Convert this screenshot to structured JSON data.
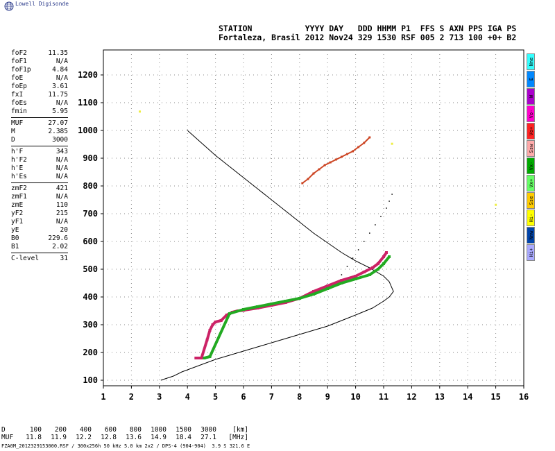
{
  "app": {
    "brand": "Lowell Digisonde"
  },
  "header": {
    "labels": "STATION           YYYY DAY   DDD HHMM P1  FFS S AXN PPS IGA PS",
    "values": "Fortaleza, Brasil 2012 Nov24 329 1530 RSF 005 2 713 100 +0+ B2"
  },
  "params": [
    {
      "name": "foF2",
      "value": "11.35"
    },
    {
      "name": "foF1",
      "value": "N/A"
    },
    {
      "name": "foF1p",
      "value": "4.84"
    },
    {
      "name": "foE",
      "value": "N/A"
    },
    {
      "name": "foEp",
      "value": "3.61"
    },
    {
      "name": "fxI",
      "value": "11.75"
    },
    {
      "name": "foEs",
      "value": "N/A"
    },
    {
      "name": "fmin",
      "value": "5.95"
    },
    {
      "name": "MUF",
      "value": "27.07"
    },
    {
      "name": "M",
      "value": "2.385"
    },
    {
      "name": "D",
      "value": "3000"
    },
    {
      "name": "h'F",
      "value": "343"
    },
    {
      "name": "h'F2",
      "value": "N/A"
    },
    {
      "name": "h'E",
      "value": "N/A"
    },
    {
      "name": "h'Es",
      "value": "N/A"
    },
    {
      "name": "zmF2",
      "value": "421"
    },
    {
      "name": "zmF1",
      "value": "N/A"
    },
    {
      "name": "zmE",
      "value": "110"
    },
    {
      "name": "yF2",
      "value": "215"
    },
    {
      "name": "yF1",
      "value": "N/A"
    },
    {
      "name": "yE",
      "value": "20"
    },
    {
      "name": "B0",
      "value": "229.6"
    },
    {
      "name": "B1",
      "value": "2.02"
    },
    {
      "name": "C-level",
      "value": "31"
    }
  ],
  "legend": [
    {
      "label": "Nne",
      "color": "#33ffff"
    },
    {
      "label": "E",
      "color": "#0088ff"
    },
    {
      "label": "W",
      "color": "#aa00cc"
    },
    {
      "label": "Vo-",
      "color": "#ff00cc"
    },
    {
      "label": "Vo+",
      "color": "#ff2222"
    },
    {
      "label": "Ssw",
      "color": "#ffaaaa"
    },
    {
      "label": "Vx-",
      "color": "#00aa00"
    },
    {
      "label": "Vx+",
      "color": "#66ff66"
    },
    {
      "label": "Sse",
      "color": "#ffcc00"
    },
    {
      "label": "Hi-",
      "color": "#ffff00"
    },
    {
      "label": "Nnw",
      "color": "#0044aa"
    },
    {
      "label": "Hi+",
      "color": "#aaaaff"
    }
  ],
  "muf_table": {
    "d_label": "D",
    "d_values": [
      "100",
      "200",
      "400",
      "600",
      "800",
      "1000",
      "1500",
      "3000"
    ],
    "d_unit": "[km]",
    "muf_label": "MUF",
    "muf_values": [
      "11.8",
      "11.9",
      "12.2",
      "12.8",
      "13.6",
      "14.9",
      "18.4",
      "27.1"
    ],
    "muf_unit": "[MHz]"
  },
  "footer": "FZA0M_2012329153000.RSF / 300x256h 50 kHz 5.0 km 2x2 / DPS-4 (904-904)  3.9 S 321.6 E",
  "chart_data": {
    "type": "scatter",
    "xlabel": "",
    "ylabel": "",
    "xlim": [
      1,
      16
    ],
    "ylim": [
      80,
      1290
    ],
    "x_ticks": [
      1,
      2,
      3,
      4,
      5,
      6,
      7,
      8,
      9,
      10,
      11,
      12,
      13,
      14,
      15,
      16
    ],
    "y_ticks": [
      100,
      200,
      300,
      400,
      500,
      600,
      700,
      800,
      900,
      1000,
      1100,
      1200
    ],
    "grid": "dotted",
    "series": [
      {
        "name": "",
        "role": "true-height-profile",
        "color": "#000000",
        "x": [
          4.0,
          4.5,
          5.0,
          5.5,
          6.0,
          6.5,
          7.0,
          7.5,
          8.0,
          8.5,
          9.0,
          9.5,
          10.0,
          10.5,
          11.0,
          11.2,
          11.35,
          11.2,
          11.0,
          10.6,
          10.0,
          9.5,
          9.0,
          8.5,
          8.0,
          7.5,
          7.0,
          6.5,
          6.0,
          5.5,
          5.0,
          4.6,
          4.2,
          3.8,
          3.5,
          3.2,
          3.05
        ],
        "y": [
          1000,
          955,
          910,
          870,
          830,
          790,
          750,
          710,
          670,
          630,
          595,
          560,
          530,
          505,
          475,
          455,
          420,
          400,
          385,
          360,
          335,
          315,
          295,
          280,
          265,
          250,
          235,
          220,
          205,
          190,
          175,
          160,
          145,
          130,
          115,
          105,
          100
        ]
      },
      {
        "name": "",
        "role": "extraordinary-trace",
        "color": "#000000",
        "x": [
          9.5,
          9.7,
          9.9,
          10.1,
          10.3,
          10.5,
          10.7,
          10.9,
          11.1,
          11.2,
          11.3
        ],
        "y": [
          480,
          510,
          540,
          570,
          600,
          630,
          660,
          690,
          720,
          745,
          770
        ]
      },
      {
        "name": "",
        "role": "ordinary-trace",
        "color": "#cc2266",
        "x": [
          4.3,
          4.5,
          4.7,
          4.8,
          4.9,
          5.0,
          5.2,
          5.4,
          5.6,
          5.8,
          6.0,
          6.5,
          7.0,
          7.5,
          8.0,
          8.5,
          9.0,
          9.5,
          10.0,
          10.3,
          10.6,
          10.8,
          11.0,
          11.1
        ],
        "y": [
          180,
          180,
          245,
          280,
          300,
          310,
          315,
          335,
          345,
          350,
          352,
          360,
          370,
          380,
          395,
          420,
          440,
          460,
          475,
          490,
          505,
          520,
          545,
          560
        ]
      },
      {
        "name": "",
        "role": "x-trace",
        "color": "#22aa22",
        "x": [
          4.6,
          4.8,
          5.5,
          6.0,
          6.5,
          7.0,
          7.5,
          8.0,
          8.5,
          9.0,
          9.5,
          10.0,
          10.5,
          10.8,
          11.0,
          11.2
        ],
        "y": [
          180,
          185,
          340,
          355,
          365,
          375,
          385,
          395,
          410,
          430,
          450,
          465,
          480,
          500,
          520,
          545
        ]
      },
      {
        "name": "",
        "role": "multiple-echo",
        "color": "#cc4422",
        "x": [
          8.1,
          8.3,
          8.5,
          8.7,
          8.9,
          9.1,
          9.3,
          9.5,
          9.7,
          9.9,
          10.1,
          10.3,
          10.5
        ],
        "y": [
          810,
          825,
          845,
          860,
          875,
          885,
          895,
          905,
          915,
          925,
          940,
          955,
          975
        ]
      },
      {
        "name": "",
        "role": "stray-echoes",
        "color": "#eeee44",
        "x": [
          2.3,
          15.0,
          11.3
        ],
        "y": [
          1068,
          732,
          952
        ]
      }
    ]
  }
}
